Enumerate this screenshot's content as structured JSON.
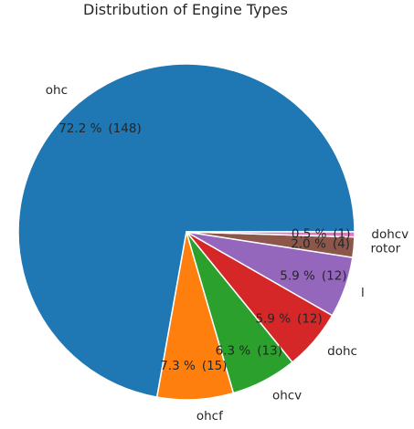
{
  "chart_data": {
    "type": "pie",
    "title": "Distribution of Engine Types",
    "slices": [
      {
        "label": "ohc",
        "value": 148,
        "percent": "72.2 %",
        "count": "(148)",
        "color": "#1f77b4"
      },
      {
        "label": "ohcf",
        "value": 15,
        "percent": "7.3 %",
        "count": "(15)",
        "color": "#ff7f0e"
      },
      {
        "label": "ohcv",
        "value": 13,
        "percent": "6.3 %",
        "count": "(13)",
        "color": "#2ca02c"
      },
      {
        "label": "dohc",
        "value": 12,
        "percent": "5.9 %",
        "count": "(12)",
        "color": "#d62728"
      },
      {
        "label": "l",
        "value": 12,
        "percent": "5.9 %",
        "count": "(12)",
        "color": "#9467bd"
      },
      {
        "label": "rotor",
        "value": 4,
        "percent": "2.0 %",
        "count": "(4)",
        "color": "#8c564b"
      },
      {
        "label": "dohcv",
        "value": 1,
        "percent": "0.5 %",
        "count": "(1)",
        "color": "#e377c2"
      }
    ]
  }
}
